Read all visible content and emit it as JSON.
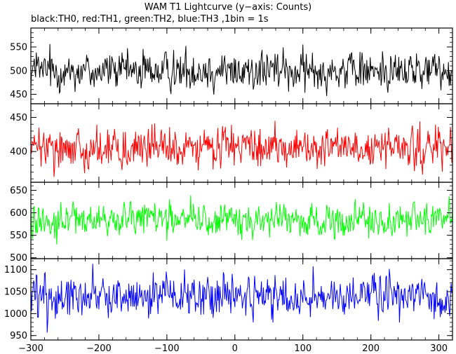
{
  "title": "WAM T1 Lightcurve (y−axis: Counts)",
  "subtitle": "black:TH0, red:TH1, green:TH2, blue:TH3 ,1bin = 1s",
  "chart_data": {
    "type": "line",
    "title": "WAM T1 Lightcurve (y−axis: Counts)",
    "subtitle": "black:TH0, red:TH1, green:TH2, blue:TH3 ,1bin = 1s",
    "xlabel": "",
    "ylabel": "Counts",
    "xlim": [
      -300,
      320
    ],
    "x_ticks": [
      -300,
      -200,
      -100,
      0,
      100,
      200,
      300
    ],
    "x_tick_labels": [
      "−300",
      "−200",
      "−100",
      "0",
      "100",
      "200",
      "300"
    ],
    "x_step_seconds": 1,
    "grid": false,
    "legend": "",
    "panels": [
      {
        "name": "TH0",
        "color": "#000000",
        "ylim": [
          430,
          590
        ],
        "yticks": [
          450,
          500,
          550
        ],
        "mean": 500,
        "spread": 38,
        "n_points": 621
      },
      {
        "name": "TH1",
        "color": "#ff0000",
        "ylim": [
          355,
          470
        ],
        "yticks": [
          400,
          450
        ],
        "mean": 405,
        "spread": 27,
        "n_points": 621
      },
      {
        "name": "TH2",
        "color": "#00ff00",
        "ylim": [
          498,
          668
        ],
        "yticks": [
          500,
          550,
          600,
          650
        ],
        "mean": 585,
        "spread": 33,
        "n_points": 621
      },
      {
        "name": "TH3",
        "color": "#0000ff",
        "ylim": [
          940,
          1125
        ],
        "yticks": [
          950,
          1000,
          1050,
          1100
        ],
        "mean": 1040,
        "spread": 45,
        "n_points": 621
      }
    ]
  }
}
